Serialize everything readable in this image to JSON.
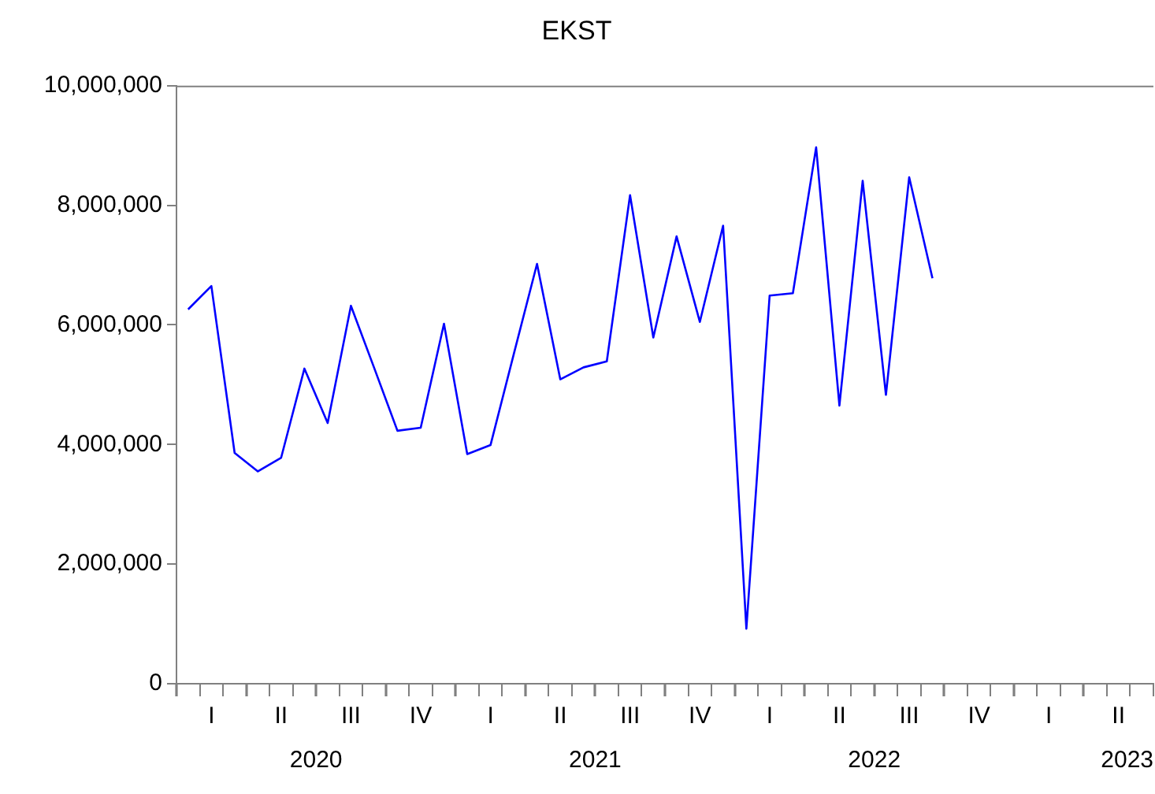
{
  "chart_data": {
    "type": "line",
    "title": "EKST",
    "categories": [
      null,
      "I",
      null,
      null,
      "II",
      null,
      null,
      "III",
      null,
      null,
      "IV",
      null,
      null,
      "I",
      null,
      null,
      "II",
      null,
      null,
      "III",
      null,
      null,
      "IV",
      null,
      null,
      "I",
      null,
      null,
      "II",
      null,
      null,
      "III",
      null,
      null,
      "IV",
      null,
      null,
      "I",
      null,
      null,
      "II",
      null
    ],
    "series": [
      {
        "color": "#0000ff",
        "values": [
          6260000,
          6650000,
          3860000,
          3550000,
          3780000,
          5270000,
          4360000,
          6320000,
          5280000,
          4230000,
          4280000,
          6020000,
          3840000,
          3990000,
          5510000,
          7020000,
          5090000,
          5290000,
          5390000,
          8170000,
          5790000,
          7480000,
          6050000,
          7660000,
          920000,
          6490000,
          6530000,
          8970000,
          4650000,
          8410000,
          4830000,
          8470000,
          6780000,
          null,
          null,
          null,
          null,
          null,
          null,
          null,
          null,
          null
        ]
      }
    ],
    "annotations": [
      "2020",
      "2021",
      "2022",
      "2023"
    ],
    "ylim": [
      0,
      10000000
    ],
    "yticks": [
      0,
      {
        "value": 2000000,
        "label": "2,000,000"
      },
      {
        "value": 4000000,
        "label": "4,000,000"
      },
      {
        "value": 6000000,
        "label": "6,000,000"
      },
      {
        "value": 8000000,
        "label": "8,000,000"
      },
      {
        "value": 10000000,
        "label": "10,000,000"
      }
    ],
    "grid": false,
    "legend": false,
    "marker": "none",
    "line_style": "solid"
  }
}
